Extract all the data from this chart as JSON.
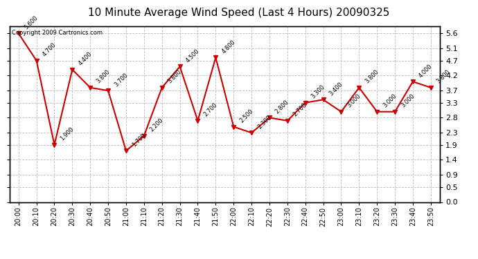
{
  "title": "10 Minute Average Wind Speed (Last 4 Hours) 20090325",
  "copyright": "Copyright 2009 Cartronics.com",
  "x_labels": [
    "20:00",
    "20:10",
    "20:20",
    "20:30",
    "20:40",
    "20:50",
    "21:00",
    "21:10",
    "21:20",
    "21:30",
    "21:40",
    "21:50",
    "22:00",
    "22:10",
    "22:20",
    "22:30",
    "22:40",
    "22:50",
    "23:00",
    "23:10",
    "23:20",
    "23:30",
    "23:40",
    "23:50"
  ],
  "y_values": [
    5.6,
    4.7,
    1.9,
    4.4,
    3.8,
    3.7,
    1.7,
    2.2,
    3.8,
    4.5,
    2.7,
    4.8,
    2.5,
    2.3,
    2.8,
    2.7,
    3.3,
    3.4,
    3.0,
    3.8,
    3.0,
    3.0,
    4.0,
    3.8
  ],
  "line_color": "#cc0000",
  "marker_color": "#cc0000",
  "bg_color": "#ffffff",
  "grid_color": "#bbbbbb",
  "y_ticks": [
    0.0,
    0.5,
    0.9,
    1.4,
    1.9,
    2.3,
    2.8,
    3.3,
    3.7,
    4.2,
    4.7,
    5.1,
    5.6
  ],
  "ylim": [
    0.0,
    5.85
  ],
  "title_fontsize": 11
}
